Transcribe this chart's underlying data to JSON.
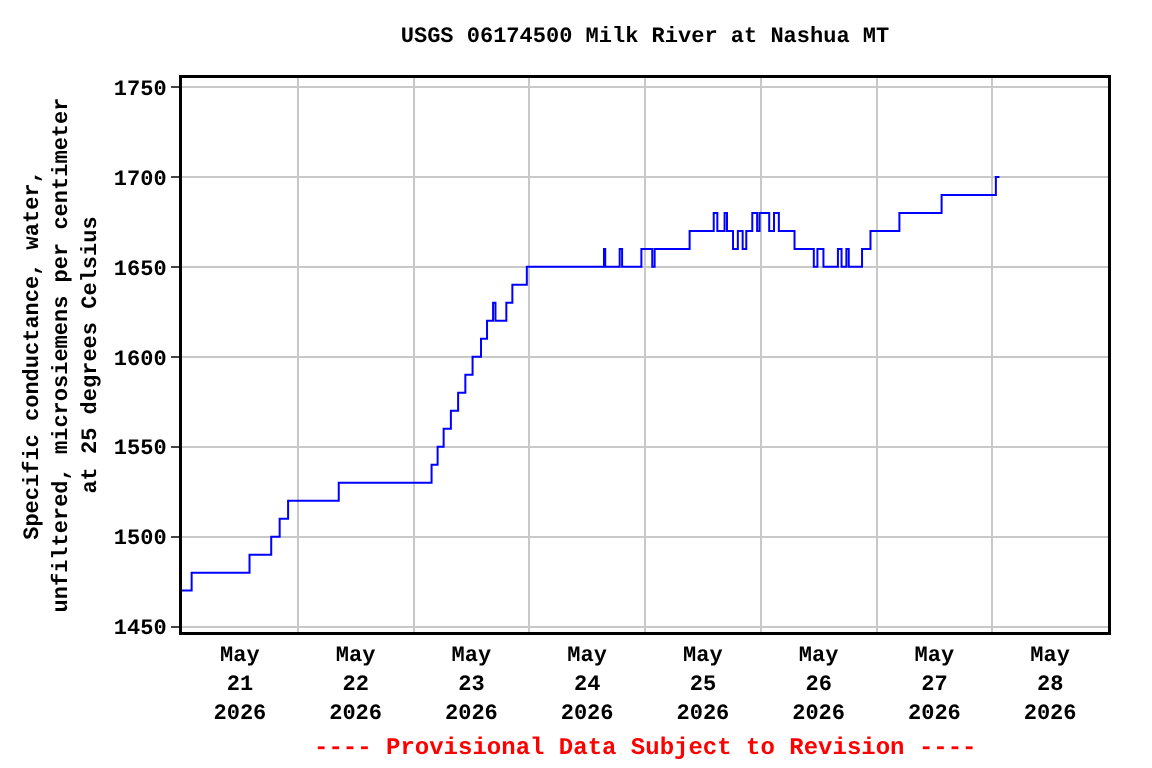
{
  "chart_data": {
    "type": "step",
    "title": "USGS 06174500 Milk River at Nashua MT",
    "ylabel": "Specific conductance, water,\nunfiltered, microsiemens per centimeter\nat 25 degrees Celsius",
    "annotations": [
      "---- Provisional Data Subject to Revision ----"
    ],
    "x": [
      "2026-05-21T00:00",
      "2026-05-21T02:00",
      "2026-05-21T14:00",
      "2026-05-21T18:30",
      "2026-05-21T20:15",
      "2026-05-21T22:00",
      "2026-05-22T08:30",
      "2026-05-23T03:45",
      "2026-05-23T05:00",
      "2026-05-23T06:15",
      "2026-05-23T07:45",
      "2026-05-23T09:15",
      "2026-05-23T10:45",
      "2026-05-23T12:15",
      "2026-05-23T14:00",
      "2026-05-23T15:15",
      "2026-05-23T16:30",
      "2026-05-23T17:00",
      "2026-05-23T19:15",
      "2026-05-23T20:30",
      "2026-05-23T23:30",
      "2026-05-24T15:30",
      "2026-05-24T15:45",
      "2026-05-24T18:45",
      "2026-05-24T19:15",
      "2026-05-24T23:15",
      "2026-05-25T01:30",
      "2026-05-25T02:00",
      "2026-05-25T09:15",
      "2026-05-25T14:15",
      "2026-05-25T15:00",
      "2026-05-25T16:30",
      "2026-05-25T17:00",
      "2026-05-25T18:15",
      "2026-05-25T19:15",
      "2026-05-25T20:15",
      "2026-05-25T21:00",
      "2026-05-25T22:15",
      "2026-05-25T23:15",
      "2026-05-25T23:45",
      "2026-05-26T01:45",
      "2026-05-26T02:45",
      "2026-05-26T03:45",
      "2026-05-26T07:00",
      "2026-05-26T11:00",
      "2026-05-26T11:45",
      "2026-05-26T13:00",
      "2026-05-26T16:00",
      "2026-05-26T16:45",
      "2026-05-26T17:45",
      "2026-05-26T18:15",
      "2026-05-26T21:00",
      "2026-05-26T22:45",
      "2026-05-27T04:45",
      "2026-05-27T13:30",
      "2026-05-28T00:45",
      "2026-05-28T01:30"
    ],
    "series": [
      {
        "color": "#0000ff",
        "values": [
          1470,
          1480,
          1490,
          1500,
          1510,
          1520,
          1530,
          1540,
          1550,
          1560,
          1570,
          1580,
          1590,
          1600,
          1610,
          1620,
          1630,
          1620,
          1630,
          1640,
          1650,
          1660,
          1650,
          1660,
          1650,
          1660,
          1650,
          1660,
          1670,
          1680,
          1670,
          1680,
          1670,
          1660,
          1670,
          1660,
          1670,
          1680,
          1670,
          1680,
          1670,
          1680,
          1670,
          1660,
          1650,
          1660,
          1650,
          1660,
          1650,
          1660,
          1650,
          1660,
          1670,
          1680,
          1690,
          1700,
          1700
        ]
      }
    ],
    "xlim": [
      "2026-05-21",
      "2026-05-29"
    ],
    "xticks": [
      {
        "value": "2026-05-22",
        "label": null
      },
      {
        "value": "2026-05-23",
        "label": null
      },
      {
        "value": "2026-05-24",
        "label": null
      },
      {
        "value": "2026-05-25",
        "label": null
      },
      {
        "value": "2026-05-26",
        "label": null
      },
      {
        "value": "2026-05-27",
        "label": null
      },
      {
        "value": "2026-05-28",
        "label": null
      },
      {
        "value": "2026-05-21T12:00",
        "label": "May\n21\n2026"
      },
      {
        "value": "2026-05-22T12:00",
        "label": "May\n22\n2026"
      },
      {
        "value": "2026-05-23T12:00",
        "label": "May\n23\n2026"
      },
      {
        "value": "2026-05-24T12:00",
        "label": "May\n24\n2026"
      },
      {
        "value": "2026-05-25T12:00",
        "label": "May\n25\n2026"
      },
      {
        "value": "2026-05-26T12:00",
        "label": "May\n26\n2026"
      },
      {
        "value": "2026-05-27T12:00",
        "label": "May\n27\n2026"
      },
      {
        "value": "2026-05-28T12:00",
        "label": "May\n28\n2026"
      }
    ],
    "ylim": [
      1447,
      1755
    ],
    "yticks": [
      1450,
      1500,
      1550,
      1600,
      1650,
      1700,
      1750
    ],
    "grid": true
  }
}
